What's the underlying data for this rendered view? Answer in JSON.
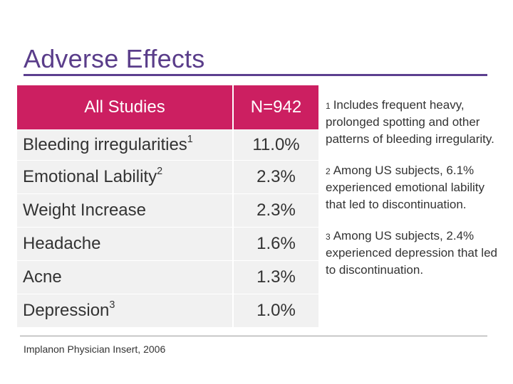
{
  "title": "Adverse Effects",
  "table": {
    "header": {
      "group": "All Studies",
      "n": "N=942"
    },
    "rows": [
      {
        "label": "Bleeding irregularities",
        "sup": "1",
        "value": "11.0%"
      },
      {
        "label": "Emotional Lability",
        "sup": "2",
        "value": "2.3%"
      },
      {
        "label": "Weight Increase",
        "sup": "",
        "value": "2.3%"
      },
      {
        "label": "Headache",
        "sup": "",
        "value": "1.6%"
      },
      {
        "label": "Acne",
        "sup": "",
        "value": "1.3%"
      },
      {
        "label": "Depression",
        "sup": "3",
        "value": "1.0%"
      }
    ]
  },
  "notes": [
    {
      "marker": "1",
      "text": "Includes frequent heavy, prolonged spotting and other patterns of bleeding irregularity."
    },
    {
      "marker": "2",
      "text": "Among US subjects, 6.1% experienced emotional lability that led to discontinuation."
    },
    {
      "marker": "3",
      "text": "Among US subjects, 2.4% experienced depression that led to discontinuation."
    }
  ],
  "source": "Implanon Physician Insert, 2006",
  "colors": {
    "accent": "#cc1f61",
    "title": "#5a3d8a",
    "rule": "#5c3f8f",
    "cell_bg": "#f1f1f1"
  }
}
